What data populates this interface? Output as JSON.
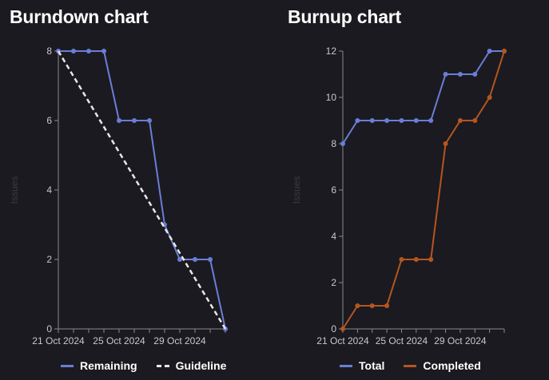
{
  "colors": {
    "background": "#1b1a20",
    "remaining": "#6a7ed6",
    "guideline": "#e8e8e8",
    "total": "#6a7ed6",
    "completed": "#b5561f",
    "axis": "#8a8a8a",
    "tick_text": "#c8c8c8",
    "ylabel_text": "#3a3a40"
  },
  "burndown": {
    "title": "Burndown chart",
    "legend": [
      {
        "label": "Remaining",
        "style": "solid",
        "color": "#6a7ed6"
      },
      {
        "label": "Guideline",
        "style": "dashed",
        "color": "#e8e8e8"
      }
    ]
  },
  "burnup": {
    "title": "Burnup chart",
    "legend": [
      {
        "label": "Total",
        "style": "solid",
        "color": "#6a7ed6"
      },
      {
        "label": "Completed",
        "style": "solid",
        "color": "#b5561f"
      }
    ]
  },
  "chart_data": [
    {
      "type": "line",
      "title": "Burndown chart",
      "ylabel": "Issues",
      "xlabel": "",
      "x": [
        "21 Oct 2024",
        "22 Oct 2024",
        "23 Oct 2024",
        "24 Oct 2024",
        "25 Oct 2024",
        "26 Oct 2024",
        "27 Oct 2024",
        "28 Oct 2024",
        "29 Oct 2024",
        "30 Oct 2024",
        "31 Oct 2024",
        "01 Nov 2024"
      ],
      "x_ticks": [
        "21 Oct 2024",
        "25 Oct 2024",
        "29 Oct 2024"
      ],
      "ylim": [
        0,
        8
      ],
      "y_ticks": [
        0,
        2,
        4,
        6,
        8
      ],
      "grid": false,
      "legend_position": "bottom",
      "series": [
        {
          "name": "Remaining",
          "style": "solid",
          "markers": true,
          "values": [
            8,
            8,
            8,
            8,
            6,
            6,
            6,
            3,
            2,
            2,
            2,
            0
          ]
        },
        {
          "name": "Guideline",
          "style": "dashed",
          "markers": false,
          "values": [
            8,
            null,
            null,
            null,
            null,
            null,
            null,
            null,
            null,
            null,
            null,
            0
          ]
        }
      ]
    },
    {
      "type": "line",
      "title": "Burnup chart",
      "ylabel": "Issues",
      "xlabel": "",
      "x": [
        "21 Oct 2024",
        "22 Oct 2024",
        "23 Oct 2024",
        "24 Oct 2024",
        "25 Oct 2024",
        "26 Oct 2024",
        "27 Oct 2024",
        "28 Oct 2024",
        "29 Oct 2024",
        "30 Oct 2024",
        "31 Oct 2024",
        "01 Nov 2024"
      ],
      "x_ticks": [
        "21 Oct 2024",
        "25 Oct 2024",
        "29 Oct 2024"
      ],
      "ylim": [
        0,
        12
      ],
      "y_ticks": [
        0,
        2,
        4,
        6,
        8,
        10,
        12
      ],
      "grid": false,
      "legend_position": "bottom",
      "series": [
        {
          "name": "Total",
          "style": "solid",
          "markers": true,
          "values": [
            8,
            9,
            9,
            9,
            9,
            9,
            9,
            11,
            11,
            11,
            12,
            12
          ]
        },
        {
          "name": "Completed",
          "style": "solid",
          "markers": true,
          "values": [
            0,
            1,
            1,
            1,
            3,
            3,
            3,
            8,
            9,
            9,
            10,
            12
          ]
        }
      ]
    }
  ]
}
